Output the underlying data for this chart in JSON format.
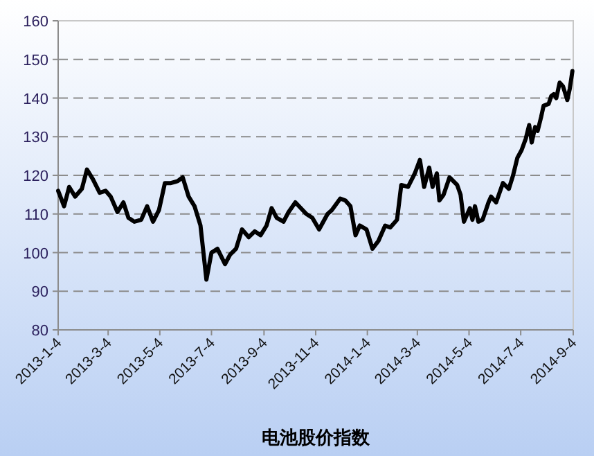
{
  "chart_data": {
    "type": "line",
    "xlabel": "电池股价指数",
    "x": [
      "2013-01-04",
      "2013-01-11",
      "2013-01-17",
      "2013-01-24",
      "2013-02-01",
      "2013-02-07",
      "2013-02-14",
      "2013-02-22",
      "2013-03-01",
      "2013-03-07",
      "2013-03-15",
      "2013-03-22",
      "2013-03-28",
      "2013-04-04",
      "2013-04-12",
      "2013-04-19",
      "2013-04-26",
      "2013-05-03",
      "2013-05-10",
      "2013-05-17",
      "2013-05-25",
      "2013-05-31",
      "2013-06-07",
      "2013-06-14",
      "2013-06-21",
      "2013-06-28",
      "2013-07-04",
      "2013-07-11",
      "2013-07-20",
      "2013-07-26",
      "2013-08-02",
      "2013-08-09",
      "2013-08-17",
      "2013-08-24",
      "2013-08-31",
      "2013-09-07",
      "2013-09-13",
      "2013-09-19",
      "2013-09-27",
      "2013-10-03",
      "2013-10-11",
      "2013-10-24",
      "2013-10-31",
      "2013-11-08",
      "2013-11-18",
      "2013-11-23",
      "2013-12-03",
      "2013-12-09",
      "2013-12-15",
      "2013-12-21",
      "2013-12-26",
      "2014-01-03",
      "2014-01-10",
      "2014-01-17",
      "2014-01-25",
      "2014-01-31",
      "2014-02-08",
      "2014-02-13",
      "2014-02-21",
      "2014-03-01",
      "2014-03-07",
      "2014-03-12",
      "2014-03-18",
      "2014-03-22",
      "2014-03-27",
      "2014-03-30",
      "2014-04-04",
      "2014-04-11",
      "2014-04-20",
      "2014-04-24",
      "2014-04-28",
      "2014-05-05",
      "2014-05-08",
      "2014-05-11",
      "2014-05-15",
      "2014-05-20",
      "2014-05-27",
      "2014-05-30",
      "2014-06-05",
      "2014-06-13",
      "2014-06-20",
      "2014-06-25",
      "2014-06-30",
      "2014-07-05",
      "2014-07-10",
      "2014-07-14",
      "2014-07-17",
      "2014-07-21",
      "2014-07-24",
      "2014-07-28",
      "2014-07-31",
      "2014-08-06",
      "2014-08-09",
      "2014-08-12",
      "2014-08-15",
      "2014-08-19",
      "2014-08-23",
      "2014-08-28",
      "2014-08-31",
      "2014-09-03"
    ],
    "series": [
      {
        "color": "#000000",
        "values": [
          116,
          112,
          117,
          114.5,
          116.5,
          121.5,
          119,
          115.5,
          116,
          114.5,
          110.5,
          113,
          109,
          108,
          108.5,
          112,
          108,
          111,
          118,
          118,
          118.5,
          119.5,
          114.5,
          112,
          107,
          93,
          100,
          101,
          97,
          99.5,
          101,
          106,
          104,
          105.5,
          104.5,
          107,
          111.5,
          109,
          108,
          110.5,
          113,
          110,
          109,
          106,
          110,
          111,
          114,
          113.5,
          112,
          104.5,
          107,
          106,
          101,
          103,
          107,
          106.5,
          108.5,
          117.5,
          117,
          120.5,
          124,
          117,
          122,
          117,
          120.5,
          113.5,
          115,
          119.5,
          117.5,
          115,
          108,
          111.5,
          108.5,
          112,
          108,
          108.5,
          113,
          114.5,
          113,
          118,
          116.5,
          120,
          124.5,
          126.5,
          129.5,
          133,
          128.5,
          132.5,
          131.5,
          135,
          138,
          138.5,
          140.5,
          141,
          140,
          144,
          143,
          139.5,
          142.5,
          147
        ]
      }
    ],
    "xlim": [
      "2013-01-04",
      "2014-09-04"
    ],
    "xticks": [
      {
        "value": "2013-01-04",
        "label": "2013-1-4"
      },
      {
        "value": "2013-03-04",
        "label": "2013-3-4"
      },
      {
        "value": "2013-05-04",
        "label": "2013-5-4"
      },
      {
        "value": "2013-07-04",
        "label": "2013-7-4"
      },
      {
        "value": "2013-09-04",
        "label": "2013-9-4"
      },
      {
        "value": "2013-11-04",
        "label": "2013-11-4"
      },
      {
        "value": "2014-01-04",
        "label": "2014-1-4"
      },
      {
        "value": "2014-03-04",
        "label": "2014-3-4"
      },
      {
        "value": "2014-05-04",
        "label": "2014-5-4"
      },
      {
        "value": "2014-07-04",
        "label": "2014-7-4"
      },
      {
        "value": "2014-09-04",
        "label": "2014-9-4"
      }
    ],
    "ylim": [
      80,
      160
    ],
    "yticks": [
      80,
      90,
      100,
      110,
      120,
      130,
      140,
      150,
      160
    ],
    "grid": "y",
    "marker": "none",
    "line_style": "solid"
  }
}
